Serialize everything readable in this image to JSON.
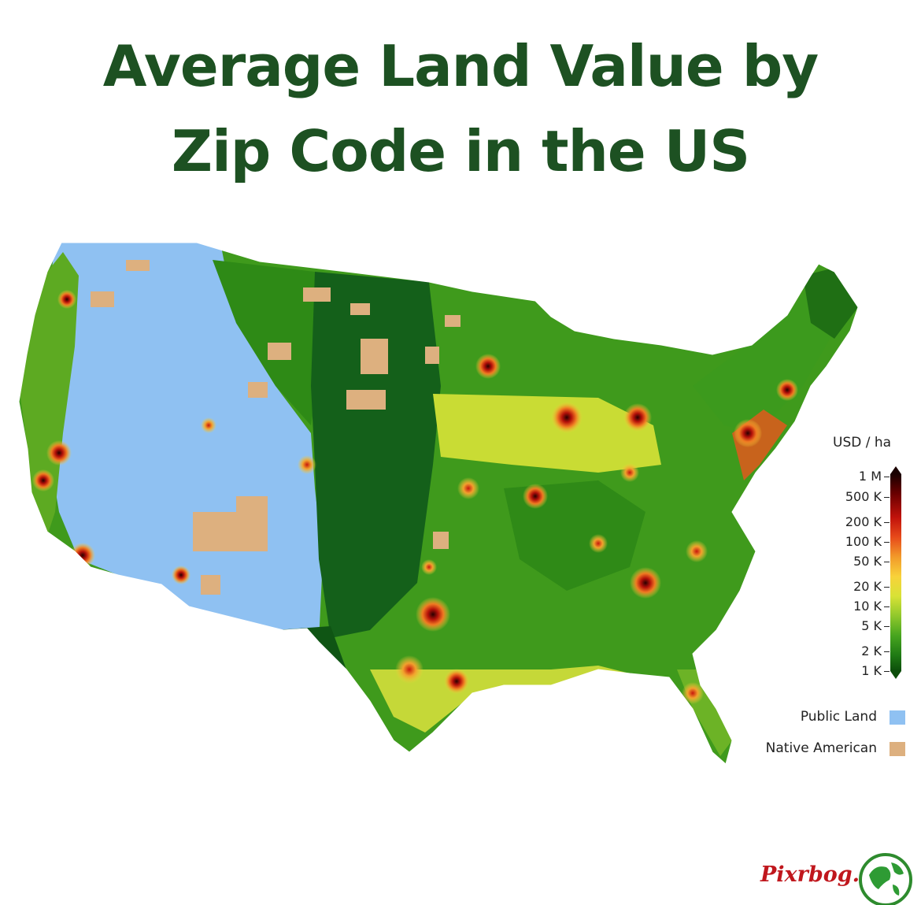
{
  "title": {
    "line1": "Average Land Value by",
    "line2": "Zip Code in the US"
  },
  "legend": {
    "title": "USD / ha",
    "ticks": [
      "1 M",
      "500 K",
      "200 K",
      "100 K",
      "50 K",
      "20 K",
      "10 K",
      "5 K",
      "2 K",
      "1 K"
    ],
    "categories": [
      {
        "label": "Public Land",
        "color": "#8fc1f2"
      },
      {
        "label": "Native American",
        "color": "#ddb07f"
      }
    ]
  },
  "colors": {
    "title": "#1d5122",
    "low_value": "#0c4d0a",
    "mid_value": "#f8d23a",
    "high_value": "#c1120b",
    "top_value": "#1a0000",
    "public_land": "#8fc1f2",
    "native_american": "#ddb07f"
  },
  "watermark": {
    "text": "Pixrbog.com",
    "icon": "globe-icon"
  }
}
